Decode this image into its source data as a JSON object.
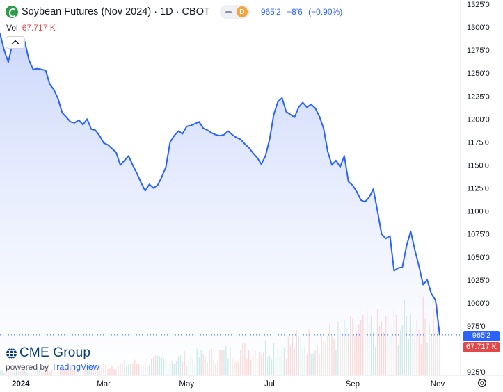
{
  "legend": {
    "title": "Soybean Futures (Nov 2024)",
    "interval": "1D",
    "exchange": "CBOT",
    "separator": "·",
    "delay_badge": "D",
    "quote": {
      "last": "965'2",
      "change": "−8'6",
      "change_percent": "(−0.90%)"
    }
  },
  "volume_legend": {
    "label": "Vol",
    "value": "67.717 K"
  },
  "price_tags": {
    "last": "965'2",
    "volume": "67.717 K"
  },
  "branding": {
    "logo_text": "CME Group",
    "powered_by": "powered by",
    "tradingview": "TradingView"
  },
  "colors": {
    "line": "#2962ff",
    "area_top": "#c9d6fb",
    "area_bottom": "#ffffff",
    "volume_up": "#26a69a",
    "volume_down": "#ef5350",
    "axis_text": "#131722"
  },
  "icons": {
    "symbol_logo": "soybean-icon",
    "collapse": "chevron-up-icon",
    "settings": "gear-icon",
    "cme": "globe-icon"
  },
  "chart_data": {
    "type": "area",
    "y_axis": {
      "ticks": [
        "1325'0",
        "1300'0",
        "1275'0",
        "1250'0",
        "1225'0",
        "1200'0",
        "1175'0",
        "1150'0",
        "1125'0",
        "1100'0",
        "1075'0",
        "1050'0",
        "1025'0",
        "1000'0",
        "975'0",
        "925'0"
      ],
      "tick_values": [
        1325,
        1300,
        1275,
        1250,
        1225,
        1200,
        1175,
        1150,
        1125,
        1100,
        1075,
        1050,
        1025,
        1000,
        975,
        925
      ],
      "range": [
        915,
        1330
      ]
    },
    "x_axis": {
      "labels": [
        "2024",
        "Mar",
        "May",
        "Jul",
        "Sep",
        "Nov"
      ],
      "label_index": [
        10,
        50,
        90,
        130,
        170,
        211
      ]
    },
    "x_count": 213,
    "price_series": [
      [
        0,
        1293
      ],
      [
        2,
        1275
      ],
      [
        4,
        1262
      ],
      [
        6,
        1282
      ],
      [
        8,
        1288
      ],
      [
        10,
        1282
      ],
      [
        12,
        1284
      ],
      [
        14,
        1264
      ],
      [
        16,
        1254
      ],
      [
        18,
        1255
      ],
      [
        20,
        1254
      ],
      [
        22,
        1253
      ],
      [
        24,
        1238
      ],
      [
        26,
        1232
      ],
      [
        28,
        1222
      ],
      [
        30,
        1207
      ],
      [
        32,
        1202
      ],
      [
        34,
        1197
      ],
      [
        36,
        1196
      ],
      [
        38,
        1199
      ],
      [
        40,
        1194
      ],
      [
        42,
        1200
      ],
      [
        44,
        1189
      ],
      [
        46,
        1188
      ],
      [
        48,
        1182
      ],
      [
        50,
        1174
      ],
      [
        52,
        1172
      ],
      [
        54,
        1168
      ],
      [
        56,
        1164
      ],
      [
        58,
        1150
      ],
      [
        60,
        1155
      ],
      [
        62,
        1160
      ],
      [
        64,
        1150
      ],
      [
        66,
        1141
      ],
      [
        68,
        1131
      ],
      [
        70,
        1122
      ],
      [
        72,
        1129
      ],
      [
        74,
        1125
      ],
      [
        76,
        1128
      ],
      [
        78,
        1137
      ],
      [
        80,
        1148
      ],
      [
        82,
        1175
      ],
      [
        84,
        1182
      ],
      [
        86,
        1187
      ],
      [
        88,
        1184
      ],
      [
        90,
        1192
      ],
      [
        92,
        1193
      ],
      [
        94,
        1195
      ],
      [
        96,
        1197
      ],
      [
        98,
        1190
      ],
      [
        100,
        1188
      ],
      [
        102,
        1185
      ],
      [
        104,
        1183
      ],
      [
        106,
        1182
      ],
      [
        108,
        1183
      ],
      [
        110,
        1187
      ],
      [
        112,
        1183
      ],
      [
        114,
        1180
      ],
      [
        116,
        1178
      ],
      [
        118,
        1173
      ],
      [
        120,
        1169
      ],
      [
        122,
        1163
      ],
      [
        124,
        1158
      ],
      [
        126,
        1151
      ],
      [
        128,
        1160
      ],
      [
        130,
        1178
      ],
      [
        132,
        1205
      ],
      [
        134,
        1219
      ],
      [
        136,
        1223
      ],
      [
        138,
        1208
      ],
      [
        140,
        1205
      ],
      [
        142,
        1202
      ],
      [
        144,
        1213
      ],
      [
        146,
        1218
      ],
      [
        148,
        1213
      ],
      [
        150,
        1216
      ],
      [
        152,
        1212
      ],
      [
        154,
        1203
      ],
      [
        156,
        1190
      ],
      [
        158,
        1165
      ],
      [
        160,
        1150
      ],
      [
        162,
        1155
      ],
      [
        164,
        1148
      ],
      [
        166,
        1160
      ],
      [
        168,
        1132
      ],
      [
        170,
        1128
      ],
      [
        172,
        1121
      ],
      [
        174,
        1112
      ],
      [
        176,
        1110
      ],
      [
        178,
        1115
      ],
      [
        180,
        1124
      ],
      [
        182,
        1100
      ],
      [
        184,
        1075
      ],
      [
        186,
        1070
      ],
      [
        188,
        1073
      ],
      [
        190,
        1035
      ],
      [
        192,
        1038
      ],
      [
        194,
        1039
      ],
      [
        196,
        1062
      ],
      [
        198,
        1078
      ],
      [
        200,
        1058
      ],
      [
        202,
        1040
      ],
      [
        204,
        1020
      ],
      [
        206,
        1025
      ],
      [
        208,
        1010
      ],
      [
        210,
        1003
      ],
      [
        212,
        965
      ]
    ],
    "volume_series": {
      "description_values_note": "",
      "max": 75
    }
  }
}
